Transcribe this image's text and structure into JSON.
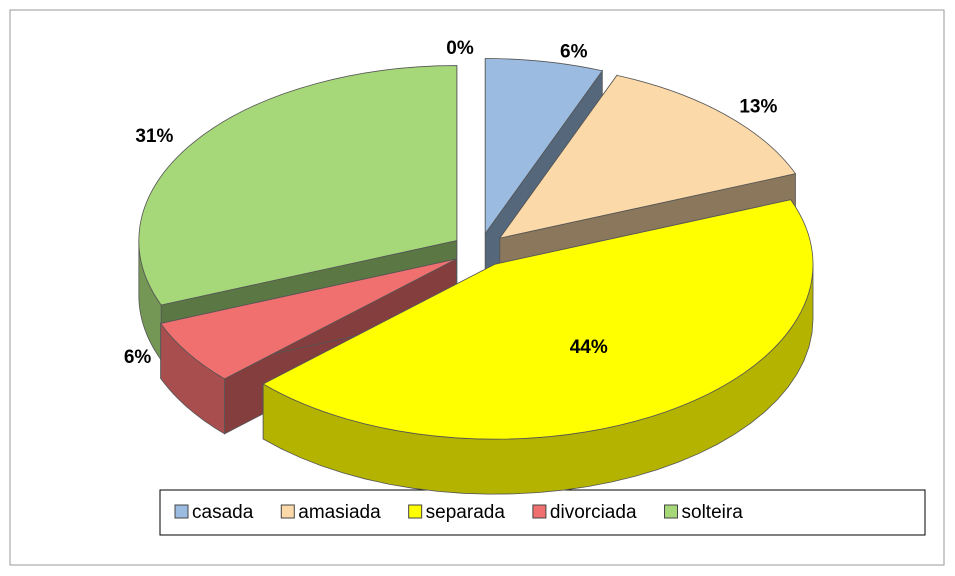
{
  "chart_data": {
    "type": "pie3d",
    "categories": [
      null,
      "casada",
      "amasiada",
      "separada",
      "divorciada",
      "solteira"
    ],
    "values": [
      0,
      6,
      13,
      44,
      6,
      31
    ],
    "value_labels": [
      "0%",
      "6%",
      "13%",
      "44%",
      "6%",
      "31%"
    ],
    "colors": [
      "#9bbbe0",
      "#9bbbe0",
      "#fbd9a8",
      "#ffff00",
      "#f07070",
      "#a6d87a"
    ],
    "legend": "bottom"
  }
}
